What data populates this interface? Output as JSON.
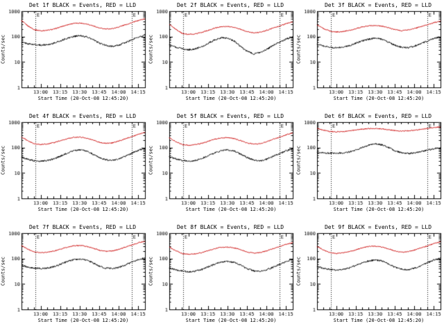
{
  "chart_data": {
    "type": "line",
    "layout": {
      "rows": 3,
      "cols": 3,
      "grid": false,
      "yscale": "log"
    },
    "xlabel": "Start Time (20-Oct-08 12:45:20)",
    "ylabel": "Counts/sec",
    "legend_note": "BLACK = Events, RED = LLD",
    "colors": {
      "events": "#000000",
      "lld": "#cc0000",
      "frame": "#000000",
      "background": "#ffffff"
    },
    "x_domain_minutes": [
      0,
      95
    ],
    "y_domain": [
      1,
      1000
    ],
    "x_ticks": [
      {
        "minute": 14.7,
        "label": "13:00"
      },
      {
        "minute": 29.7,
        "label": "13:15"
      },
      {
        "minute": 44.7,
        "label": "13:30"
      },
      {
        "minute": 59.7,
        "label": "13:45"
      },
      {
        "minute": 74.7,
        "label": "14:00"
      },
      {
        "minute": 89.7,
        "label": "14:15"
      }
    ],
    "y_ticks": [
      {
        "value": 1000,
        "label": "1000"
      },
      {
        "value": 100,
        "label": "100"
      },
      {
        "value": 10,
        "label": "10"
      },
      {
        "value": 1,
        "label": "1"
      }
    ],
    "event_lines": {
      "minutes": [
        10.7,
        84.7
      ],
      "label": "E",
      "style": "dotted"
    },
    "x_minutes": [
      0,
      5,
      10,
      15,
      20,
      25,
      30,
      35,
      40,
      45,
      50,
      55,
      60,
      65,
      70,
      75,
      80,
      85,
      90,
      95
    ],
    "panels": [
      {
        "title": "Det 1f BLACK = Events, RED = LLD",
        "lld": [
          420,
          260,
          185,
          168,
          176,
          196,
          238,
          288,
          328,
          340,
          315,
          265,
          215,
          196,
          205,
          240,
          292,
          352,
          430,
          500
        ],
        "events": [
          60,
          52,
          48,
          46,
          48,
          55,
          68,
          85,
          100,
          108,
          98,
          75,
          55,
          44,
          41,
          46,
          58,
          75,
          95,
          115
        ]
      },
      {
        "title": "Det 2f BLACK = Events, RED = LLD",
        "lld": [
          300,
          195,
          132,
          122,
          128,
          146,
          176,
          215,
          245,
          250,
          230,
          190,
          155,
          141,
          148,
          176,
          216,
          262,
          322,
          380
        ],
        "events": [
          46,
          38,
          33,
          30,
          33,
          40,
          55,
          74,
          90,
          86,
          66,
          40,
          26,
          21,
          23,
          31,
          45,
          61,
          80,
          96
        ]
      },
      {
        "title": "Det 3f BLACK = Events, RED = LLD",
        "lld": [
          285,
          205,
          162,
          151,
          158,
          176,
          206,
          241,
          266,
          271,
          256,
          221,
          186,
          171,
          179,
          206,
          246,
          292,
          352,
          405
        ],
        "events": [
          50,
          43,
          38,
          36,
          38,
          44,
          55,
          68,
          80,
          86,
          78,
          60,
          45,
          38,
          36,
          42,
          52,
          66,
          85,
          96
        ]
      },
      {
        "title": "Det 4f BLACK = Events, RED = LLD",
        "lld": [
          262,
          182,
          141,
          131,
          138,
          156,
          186,
          221,
          251,
          256,
          236,
          196,
          161,
          146,
          153,
          181,
          221,
          266,
          332,
          392
        ],
        "events": [
          41,
          35,
          30,
          29,
          31,
          36,
          46,
          60,
          75,
          81,
          72,
          55,
          40,
          33,
          31,
          36,
          46,
          60,
          78,
          91
        ]
      },
      {
        "title": "Det 5f BLACK = Events, RED = LLD",
        "lld": [
          242,
          172,
          131,
          122,
          130,
          147,
          176,
          211,
          241,
          246,
          226,
          186,
          151,
          137,
          144,
          171,
          211,
          256,
          316,
          372
        ],
        "events": [
          43,
          36,
          31,
          29,
          31,
          37,
          48,
          62,
          76,
          81,
          72,
          55,
          40,
          32,
          30,
          35,
          45,
          58,
          75,
          89
        ]
      },
      {
        "title": "Det 6f BLACK = Events, RED = LLD",
        "lld": [
          560,
          485,
          432,
          416,
          426,
          451,
          491,
          531,
          556,
          561,
          541,
          501,
          461,
          441,
          451,
          481,
          521,
          561,
          611,
          650
        ],
        "events": [
          66,
          62,
          60,
          60,
          62,
          68,
          80,
          100,
          126,
          141,
          128,
          100,
          75,
          62,
          58,
          62,
          70,
          80,
          90,
          96
        ]
      },
      {
        "title": "Det 7f BLACK = Events, RED = LLD",
        "lld": [
          322,
          232,
          181,
          169,
          177,
          196,
          236,
          281,
          316,
          326,
          301,
          256,
          211,
          191,
          199,
          231,
          281,
          341,
          421,
          481
        ],
        "events": [
          56,
          46,
          42,
          40,
          42,
          48,
          60,
          75,
          90,
          96,
          88,
          68,
          50,
          42,
          40,
          45,
          56,
          72,
          92,
          106
        ]
      },
      {
        "title": "Det 8f BLACK = Events, RED = LLD",
        "lld": [
          282,
          202,
          156,
          146,
          153,
          171,
          206,
          246,
          276,
          281,
          261,
          221,
          181,
          163,
          171,
          201,
          246,
          296,
          361,
          421
        ],
        "events": [
          42,
          36,
          32,
          30,
          32,
          37,
          47,
          60,
          73,
          78,
          70,
          54,
          40,
          33,
          31,
          36,
          46,
          60,
          78,
          91
        ]
      },
      {
        "title": "Det 9f BLACK = Events, RED = LLD",
        "lld": [
          302,
          216,
          169,
          158,
          166,
          186,
          223,
          266,
          299,
          306,
          283,
          239,
          197,
          179,
          187,
          216,
          263,
          316,
          391,
          451
        ],
        "events": [
          48,
          41,
          37,
          35,
          37,
          43,
          54,
          68,
          82,
          88,
          80,
          62,
          46,
          38,
          36,
          42,
          52,
          68,
          88,
          101
        ]
      }
    ]
  }
}
